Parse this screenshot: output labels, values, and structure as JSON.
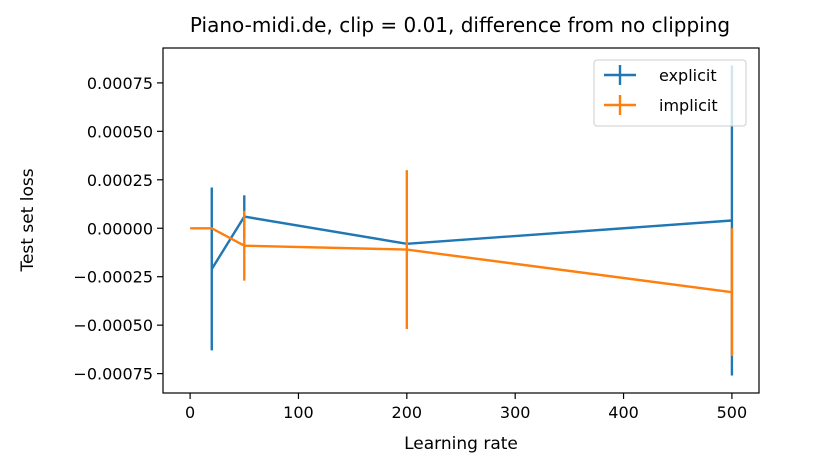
{
  "chart_data": {
    "type": "line",
    "title": "Piano-midi.de, clip = 0.01, difference from no clipping",
    "xlabel": "Learning rate",
    "ylabel": "Test set loss",
    "xlim": [
      -25,
      525
    ],
    "ylim": [
      -0.00085,
      0.00093
    ],
    "xticks": [
      0,
      100,
      200,
      300,
      400,
      500
    ],
    "xtick_labels": [
      "0",
      "100",
      "200",
      "300",
      "400",
      "500"
    ],
    "yticks": [
      0.00075,
      0.0005,
      0.00025,
      0.0,
      -0.00025,
      -0.0005,
      -0.00075
    ],
    "ytick_labels": [
      "0.00075",
      "0.00050",
      "0.00025",
      "0.00000",
      "−0.00025",
      "−0.00050",
      "−0.00075"
    ],
    "grid": false,
    "legend_position": "top-right",
    "series": [
      {
        "name": "explicit",
        "color": "#1f77b4",
        "points": [
          {
            "x": 20,
            "y": -0.00021,
            "err": 0.00042
          },
          {
            "x": 50,
            "y": 6e-05,
            "err": 0.00011
          },
          {
            "x": 200,
            "y": -8e-05,
            "err": 0.0
          },
          {
            "x": 500,
            "y": 4e-05,
            "err": 0.0008
          }
        ]
      },
      {
        "name": "implicit",
        "color": "#ff7f0e",
        "points": [
          {
            "x": 0,
            "y": 0.0,
            "err": 0.0
          },
          {
            "x": 20,
            "y": 0.0,
            "err": 0.0
          },
          {
            "x": 50,
            "y": -9e-05,
            "err": 0.00018
          },
          {
            "x": 200,
            "y": -0.00011,
            "err": 0.00041
          },
          {
            "x": 500,
            "y": -0.00033,
            "err": 0.00033
          }
        ]
      }
    ]
  }
}
